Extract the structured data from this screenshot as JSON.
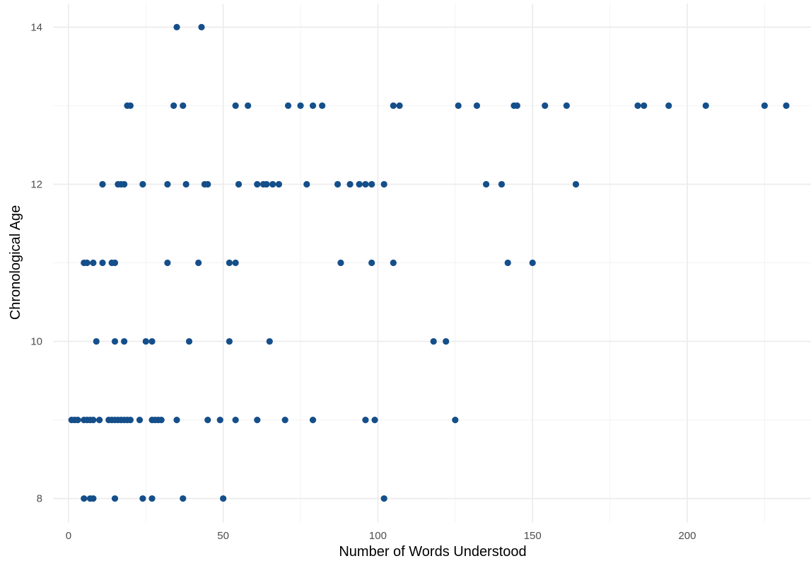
{
  "chart_data": {
    "type": "scatter",
    "title": "",
    "xlabel": "Number of Words Understood",
    "ylabel": "Chronological Age",
    "xlim": [
      -5,
      240
    ],
    "ylim": [
      7.7,
      14.3
    ],
    "x_ticks": [
      0,
      50,
      100,
      150,
      200
    ],
    "y_ticks": [
      8,
      10,
      12,
      14
    ],
    "grid": true,
    "point_color": "#154f8a",
    "points": [
      {
        "x": 35,
        "y": 14
      },
      {
        "x": 43,
        "y": 14
      },
      {
        "x": 19,
        "y": 13
      },
      {
        "x": 20,
        "y": 13
      },
      {
        "x": 34,
        "y": 13
      },
      {
        "x": 37,
        "y": 13
      },
      {
        "x": 54,
        "y": 13
      },
      {
        "x": 58,
        "y": 13
      },
      {
        "x": 71,
        "y": 13
      },
      {
        "x": 75,
        "y": 13
      },
      {
        "x": 79,
        "y": 13
      },
      {
        "x": 82,
        "y": 13
      },
      {
        "x": 105,
        "y": 13
      },
      {
        "x": 107,
        "y": 13
      },
      {
        "x": 126,
        "y": 13
      },
      {
        "x": 132,
        "y": 13
      },
      {
        "x": 144,
        "y": 13
      },
      {
        "x": 145,
        "y": 13
      },
      {
        "x": 154,
        "y": 13
      },
      {
        "x": 161,
        "y": 13
      },
      {
        "x": 184,
        "y": 13
      },
      {
        "x": 186,
        "y": 13
      },
      {
        "x": 194,
        "y": 13
      },
      {
        "x": 206,
        "y": 13
      },
      {
        "x": 225,
        "y": 13
      },
      {
        "x": 232,
        "y": 13
      },
      {
        "x": 11,
        "y": 12
      },
      {
        "x": 16,
        "y": 12
      },
      {
        "x": 17,
        "y": 12
      },
      {
        "x": 18,
        "y": 12
      },
      {
        "x": 24,
        "y": 12
      },
      {
        "x": 32,
        "y": 12
      },
      {
        "x": 38,
        "y": 12
      },
      {
        "x": 44,
        "y": 12
      },
      {
        "x": 45,
        "y": 12
      },
      {
        "x": 55,
        "y": 12
      },
      {
        "x": 61,
        "y": 12
      },
      {
        "x": 63,
        "y": 12
      },
      {
        "x": 64,
        "y": 12
      },
      {
        "x": 66,
        "y": 12
      },
      {
        "x": 68,
        "y": 12
      },
      {
        "x": 77,
        "y": 12
      },
      {
        "x": 87,
        "y": 12
      },
      {
        "x": 91,
        "y": 12
      },
      {
        "x": 94,
        "y": 12
      },
      {
        "x": 96,
        "y": 12
      },
      {
        "x": 98,
        "y": 12
      },
      {
        "x": 102,
        "y": 12
      },
      {
        "x": 135,
        "y": 12
      },
      {
        "x": 140,
        "y": 12
      },
      {
        "x": 164,
        "y": 12
      },
      {
        "x": 5,
        "y": 11
      },
      {
        "x": 6,
        "y": 11
      },
      {
        "x": 8,
        "y": 11
      },
      {
        "x": 11,
        "y": 11
      },
      {
        "x": 14,
        "y": 11
      },
      {
        "x": 15,
        "y": 11
      },
      {
        "x": 32,
        "y": 11
      },
      {
        "x": 42,
        "y": 11
      },
      {
        "x": 52,
        "y": 11
      },
      {
        "x": 54,
        "y": 11
      },
      {
        "x": 88,
        "y": 11
      },
      {
        "x": 98,
        "y": 11
      },
      {
        "x": 105,
        "y": 11
      },
      {
        "x": 142,
        "y": 11
      },
      {
        "x": 150,
        "y": 11
      },
      {
        "x": 9,
        "y": 10
      },
      {
        "x": 15,
        "y": 10
      },
      {
        "x": 18,
        "y": 10
      },
      {
        "x": 25,
        "y": 10
      },
      {
        "x": 27,
        "y": 10
      },
      {
        "x": 39,
        "y": 10
      },
      {
        "x": 52,
        "y": 10
      },
      {
        "x": 65,
        "y": 10
      },
      {
        "x": 118,
        "y": 10
      },
      {
        "x": 122,
        "y": 10
      },
      {
        "x": 1,
        "y": 9
      },
      {
        "x": 2,
        "y": 9
      },
      {
        "x": 3,
        "y": 9
      },
      {
        "x": 5,
        "y": 9
      },
      {
        "x": 6,
        "y": 9
      },
      {
        "x": 7,
        "y": 9
      },
      {
        "x": 8,
        "y": 9
      },
      {
        "x": 10,
        "y": 9
      },
      {
        "x": 13,
        "y": 9
      },
      {
        "x": 14,
        "y": 9
      },
      {
        "x": 15,
        "y": 9
      },
      {
        "x": 16,
        "y": 9
      },
      {
        "x": 17,
        "y": 9
      },
      {
        "x": 18,
        "y": 9
      },
      {
        "x": 19,
        "y": 9
      },
      {
        "x": 20,
        "y": 9
      },
      {
        "x": 23,
        "y": 9
      },
      {
        "x": 27,
        "y": 9
      },
      {
        "x": 28,
        "y": 9
      },
      {
        "x": 29,
        "y": 9
      },
      {
        "x": 30,
        "y": 9
      },
      {
        "x": 35,
        "y": 9
      },
      {
        "x": 45,
        "y": 9
      },
      {
        "x": 49,
        "y": 9
      },
      {
        "x": 54,
        "y": 9
      },
      {
        "x": 61,
        "y": 9
      },
      {
        "x": 70,
        "y": 9
      },
      {
        "x": 79,
        "y": 9
      },
      {
        "x": 96,
        "y": 9
      },
      {
        "x": 99,
        "y": 9
      },
      {
        "x": 125,
        "y": 9
      },
      {
        "x": 5,
        "y": 8
      },
      {
        "x": 7,
        "y": 8
      },
      {
        "x": 8,
        "y": 8
      },
      {
        "x": 15,
        "y": 8
      },
      {
        "x": 24,
        "y": 8
      },
      {
        "x": 27,
        "y": 8
      },
      {
        "x": 37,
        "y": 8
      },
      {
        "x": 50,
        "y": 8
      },
      {
        "x": 102,
        "y": 8
      }
    ]
  }
}
